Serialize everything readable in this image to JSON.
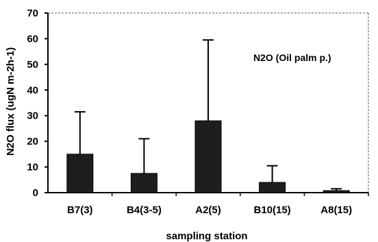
{
  "chart_data": {
    "type": "bar",
    "title": "",
    "annotation": "N2O (Oil palm p.)",
    "xlabel": "sampling station",
    "ylabel": "N2O flux (ugN m-2h-1)",
    "ylim": [
      0,
      70
    ],
    "yticks": [
      0,
      10,
      20,
      30,
      40,
      50,
      60,
      70
    ],
    "categories": [
      "B7(3)",
      "B4(3-5)",
      "A2(5)",
      "B10(15)",
      "A8(15)"
    ],
    "values": [
      15,
      7.5,
      28,
      4,
      0.8
    ],
    "error_upper": [
      31.5,
      21,
      59.5,
      10.5,
      1.5
    ],
    "grid": false,
    "legend": "none",
    "bar_color": "#1e1e1e",
    "error_color": "#000000"
  }
}
